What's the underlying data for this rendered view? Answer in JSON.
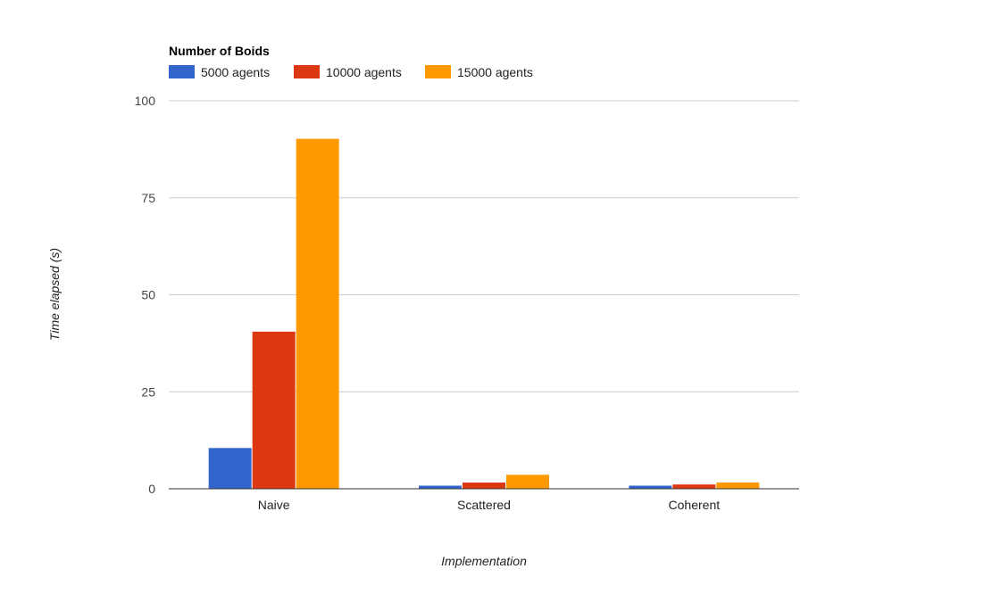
{
  "chart_data": {
    "type": "bar",
    "title": "",
    "legend_title": "Number of Boids",
    "legend_position": "top-left",
    "xlabel": "Implementation",
    "ylabel": "Time elapsed (s)",
    "categories": [
      "Naive",
      "Scattered",
      "Coherent"
    ],
    "series": [
      {
        "name": "5000 agents",
        "color": "#3366cc",
        "values": [
          10.5,
          0.8,
          0.8
        ]
      },
      {
        "name": "10000 agents",
        "color": "#dc3912",
        "values": [
          40.5,
          1.6,
          1.1
        ]
      },
      {
        "name": "15000 agents",
        "color": "#ff9900",
        "values": [
          90.2,
          3.6,
          1.6
        ]
      }
    ],
    "ylim": [
      0,
      100
    ],
    "yticks": [
      0,
      25,
      50,
      75,
      100
    ],
    "grid": true
  }
}
